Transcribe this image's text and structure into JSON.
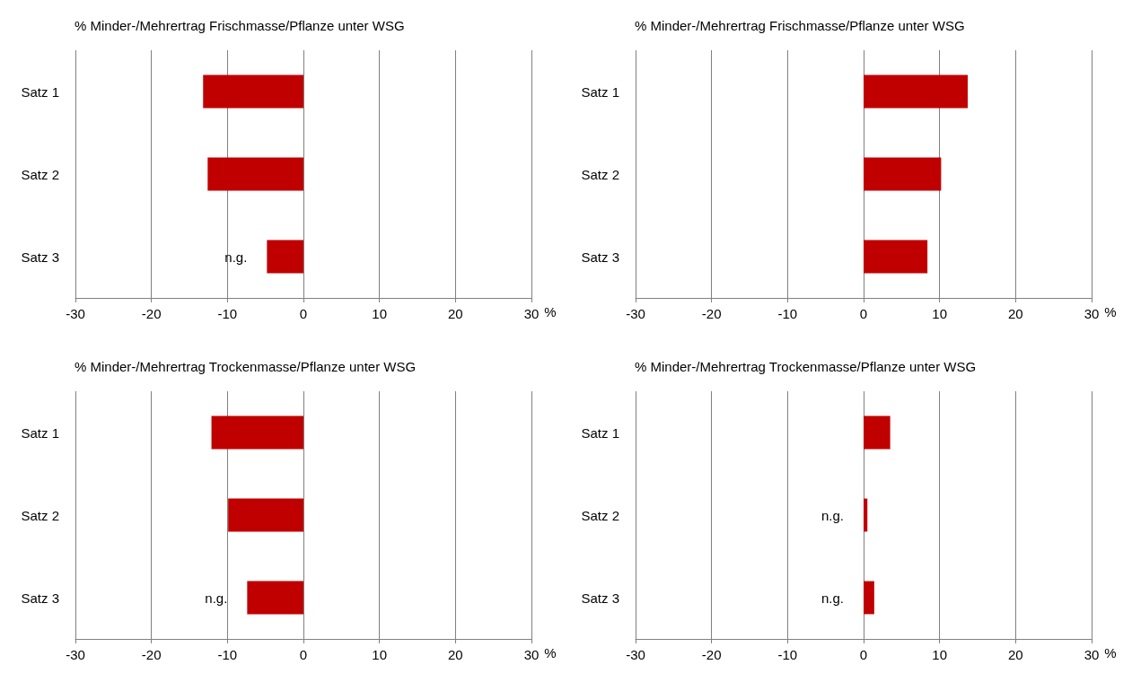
{
  "chart_data": [
    {
      "type": "bar",
      "orientation": "horizontal",
      "title": "% Minder-/Mehrertrag Frischmasse/Pflanze unter WSG",
      "categories": [
        "Satz 1",
        "Satz 2",
        "Satz 3"
      ],
      "values": [
        -13.2,
        -12.6,
        -4.8
      ],
      "value_labels": [
        null,
        null,
        "n.g."
      ],
      "color": "#c00000",
      "xlim": [
        -30,
        30
      ],
      "xticks": [
        -30,
        -20,
        -10,
        0,
        10,
        20,
        30
      ],
      "xlabel": "%",
      "grid": "x"
    },
    {
      "type": "bar",
      "orientation": "horizontal",
      "title": "% Minder-/Mehrertrag Frischmasse/Pflanze unter WSG",
      "categories": [
        "Satz 1",
        "Satz 2",
        "Satz 3"
      ],
      "values": [
        13.7,
        10.2,
        8.4
      ],
      "color": "#c00000",
      "xlim": [
        -30,
        30
      ],
      "xticks": [
        -30,
        -20,
        -10,
        0,
        10,
        20,
        30
      ],
      "xlabel": "%",
      "grid": "x"
    },
    {
      "type": "bar",
      "orientation": "horizontal",
      "title": "% Minder-/Mehrertrag Trockenmasse/Pflanze unter WSG",
      "categories": [
        "Satz 1",
        "Satz 2",
        "Satz 3"
      ],
      "values": [
        -12.1,
        -9.9,
        -7.4
      ],
      "value_labels": [
        null,
        null,
        "n.g."
      ],
      "color": "#c00000",
      "xlim": [
        -30,
        30
      ],
      "xticks": [
        -30,
        -20,
        -10,
        0,
        10,
        20,
        30
      ],
      "xlabel": "%",
      "grid": "x"
    },
    {
      "type": "bar",
      "orientation": "horizontal",
      "title": "% Minder-/Mehrertrag Trockenmasse/Pflanze unter WSG",
      "categories": [
        "Satz 1",
        "Satz 2",
        "Satz 3"
      ],
      "values": [
        3.5,
        0.5,
        1.4
      ],
      "value_labels": [
        null,
        "n.g.",
        "n.g."
      ],
      "color": "#c00000",
      "xlim": [
        -30,
        30
      ],
      "xticks": [
        -30,
        -20,
        -10,
        0,
        10,
        20,
        30
      ],
      "xlabel": "%",
      "grid": "x"
    }
  ]
}
